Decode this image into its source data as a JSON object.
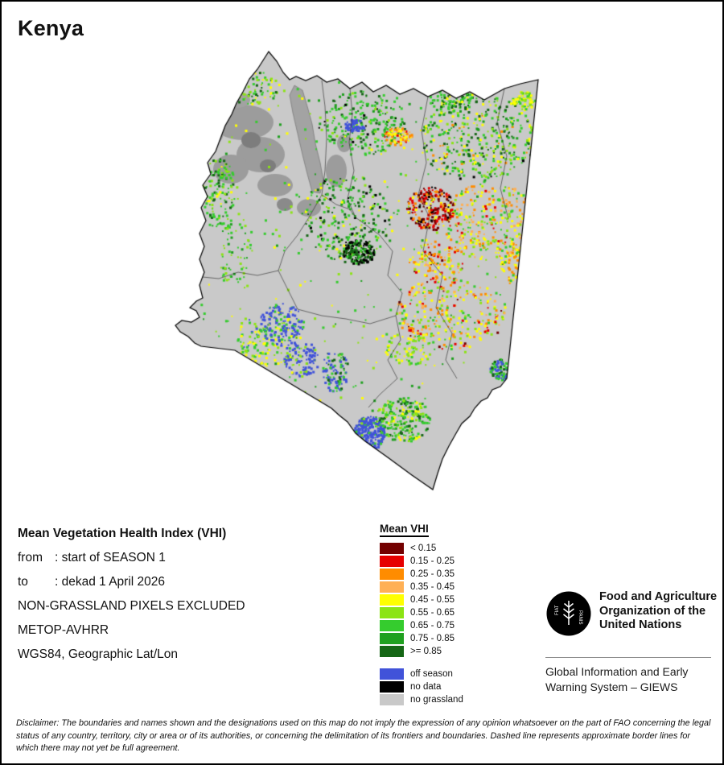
{
  "page": {
    "title": "Kenya"
  },
  "info": {
    "heading": "Mean Vegetation Health Index (VHI)",
    "from_label": "from",
    "from_value": ": start of SEASON 1",
    "to_label": "to",
    "to_value": ": dekad 1 April 2026",
    "line3": "NON-GRASSLAND PIXELS EXCLUDED",
    "line4": "METOP-AVHRR",
    "line5": "WGS84, Geographic Lat/Lon"
  },
  "legend": {
    "title": "Mean VHI",
    "classes": [
      {
        "label": "< 0.15",
        "color": "#730000"
      },
      {
        "label": "0.15 - 0.25",
        "color": "#e60000"
      },
      {
        "label": "0.25 - 0.35",
        "color": "#ff8c00"
      },
      {
        "label": "0.35 - 0.45",
        "color": "#ffb055"
      },
      {
        "label": "0.45 - 0.55",
        "color": "#ffff00"
      },
      {
        "label": "0.55 - 0.65",
        "color": "#8ce413"
      },
      {
        "label": "0.65 - 0.75",
        "color": "#35cc2e"
      },
      {
        "label": "0.75 - 0.85",
        "color": "#1fa01f"
      },
      {
        "label": ">= 0.85",
        "color": "#156615"
      }
    ],
    "extras": [
      {
        "label": "off season",
        "color": "#4153d9"
      },
      {
        "label": "no data",
        "color": "#000000"
      },
      {
        "label": "no grassland",
        "color": "#c9c9c9"
      }
    ]
  },
  "footer": {
    "logo_label": "FAO",
    "fao_lines": [
      "Food and Agriculture",
      "Organization of the",
      "United Nations"
    ],
    "giews_lines": [
      "Global Information and Early",
      "Warning System – GIEWS"
    ]
  },
  "disclaimer": "Disclaimer: The boundaries and names shown and the designations used on this map do not imply the expression of any opinion whatsoever on the part of FAO concerning the legal status of any country, territory, city or area or of its authorities, or concerning the delimitation of its frontiers and boundaries. Dashed line represents approximate border lines for which there may not yet be full agreement."
}
